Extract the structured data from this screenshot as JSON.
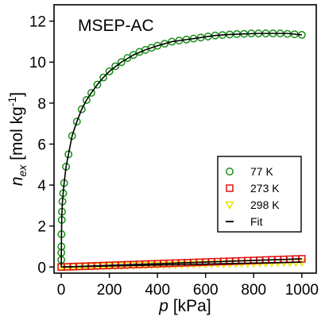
{
  "chart_data": {
    "type": "scatter",
    "title": "MSEP-AC",
    "xlabel": {
      "base": "p",
      "unit": " [kPa]"
    },
    "ylabel": {
      "base": "n",
      "sub": "ex",
      "unit": " [mol kg",
      "sup": "-1",
      "close": "]"
    },
    "xlim": [
      -30,
      1060
    ],
    "ylim": [
      -0.3,
      12.8
    ],
    "x_ticks": [
      0,
      200,
      400,
      600,
      800,
      1000
    ],
    "y_ticks": [
      0,
      2,
      4,
      6,
      8,
      10,
      12
    ],
    "grid": false,
    "legend_position": "bottom-right",
    "colors": {
      "s77": "#1a8c1a",
      "s273": "#e01010",
      "s298": "#e6e600",
      "fit": "#000000"
    },
    "legend": [
      {
        "label": "77 K",
        "marker": "circle"
      },
      {
        "label": "273 K",
        "marker": "square"
      },
      {
        "label": "298 K",
        "marker": "triangle-down"
      },
      {
        "label": "Fit",
        "marker": "line"
      }
    ],
    "series": [
      {
        "name": "77 K",
        "marker": "circle",
        "x": [
          0.1,
          0.3,
          0.5,
          1,
          2,
          3,
          5,
          8,
          12,
          20,
          30,
          45,
          65,
          85,
          105,
          125,
          150,
          175,
          200,
          225,
          250,
          275,
          300,
          325,
          350,
          375,
          400,
          430,
          460,
          490,
          520,
          550,
          580,
          610,
          640,
          670,
          700,
          730,
          760,
          790,
          820,
          850,
          880,
          910,
          940,
          970,
          1000
        ],
        "y": [
          0.35,
          0.7,
          1.0,
          1.6,
          2.3,
          2.7,
          3.2,
          3.6,
          4.1,
          4.9,
          5.5,
          6.4,
          7.1,
          7.7,
          8.15,
          8.5,
          8.9,
          9.25,
          9.55,
          9.8,
          10.0,
          10.2,
          10.35,
          10.5,
          10.6,
          10.7,
          10.8,
          10.9,
          11.0,
          11.05,
          11.1,
          11.15,
          11.2,
          11.25,
          11.3,
          11.32,
          11.35,
          11.37,
          11.38,
          11.4,
          11.4,
          11.4,
          11.4,
          11.4,
          11.38,
          11.36,
          11.33
        ]
      },
      {
        "name": "273 K",
        "marker": "square",
        "x": [
          0,
          25,
          50,
          75,
          100,
          125,
          150,
          175,
          200,
          225,
          250,
          275,
          300,
          325,
          350,
          375,
          400,
          425,
          450,
          475,
          500,
          525,
          550,
          575,
          600,
          625,
          650,
          675,
          700,
          725,
          750,
          775,
          800,
          825,
          850,
          875,
          900,
          925,
          950,
          975,
          1000
        ],
        "y": [
          0.0,
          0.01,
          0.02,
          0.03,
          0.04,
          0.05,
          0.06,
          0.07,
          0.08,
          0.09,
          0.1,
          0.11,
          0.12,
          0.13,
          0.14,
          0.15,
          0.16,
          0.17,
          0.18,
          0.19,
          0.2,
          0.21,
          0.22,
          0.23,
          0.24,
          0.25,
          0.26,
          0.27,
          0.28,
          0.29,
          0.3,
          0.31,
          0.32,
          0.33,
          0.34,
          0.35,
          0.36,
          0.37,
          0.38,
          0.39,
          0.4
        ]
      },
      {
        "name": "298 K",
        "marker": "triangle-down",
        "x": [
          0,
          25,
          50,
          75,
          100,
          125,
          150,
          175,
          200,
          225,
          250,
          275,
          300,
          325,
          350,
          375,
          400,
          425,
          450,
          475,
          500,
          525,
          550,
          575,
          600,
          625,
          650,
          675,
          700,
          725,
          750,
          775,
          800,
          825,
          850,
          875,
          900,
          925,
          950,
          975,
          1000
        ],
        "y": [
          0.0,
          0.006,
          0.012,
          0.018,
          0.024,
          0.03,
          0.036,
          0.042,
          0.048,
          0.054,
          0.06,
          0.066,
          0.072,
          0.078,
          0.084,
          0.09,
          0.096,
          0.102,
          0.108,
          0.114,
          0.12,
          0.126,
          0.132,
          0.138,
          0.144,
          0.15,
          0.156,
          0.162,
          0.168,
          0.174,
          0.18,
          0.186,
          0.192,
          0.198,
          0.204,
          0.21,
          0.216,
          0.222,
          0.228,
          0.234,
          0.24
        ]
      }
    ],
    "fits": [
      {
        "name": "Fit",
        "series": "77 K",
        "x": [
          0,
          1,
          2,
          3,
          5,
          8,
          12,
          20,
          30,
          45,
          65,
          85,
          105,
          125,
          150,
          175,
          200,
          250,
          300,
          350,
          400,
          460,
          520,
          580,
          640,
          700,
          760,
          820,
          880,
          940,
          1000
        ],
        "y": [
          0,
          1.6,
          2.3,
          2.7,
          3.2,
          3.6,
          4.1,
          4.9,
          5.5,
          6.4,
          7.1,
          7.7,
          8.15,
          8.5,
          8.9,
          9.25,
          9.55,
          10.0,
          10.35,
          10.6,
          10.8,
          11.0,
          11.1,
          11.2,
          11.3,
          11.35,
          11.38,
          11.4,
          11.4,
          11.4,
          11.33
        ]
      },
      {
        "name": "Fit",
        "series": "273 K",
        "x": [
          0,
          1000
        ],
        "y": [
          0.0,
          0.4
        ]
      },
      {
        "name": "Fit",
        "series": "298 K",
        "x": [
          0,
          1000
        ],
        "y": [
          0.0,
          0.24
        ]
      }
    ]
  }
}
